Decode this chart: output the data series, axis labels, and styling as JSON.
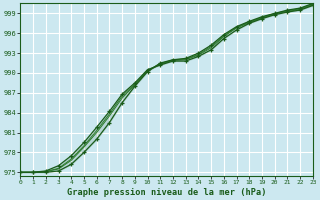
{
  "title": "Graphe pression niveau de la mer (hPa)",
  "bg_color": "#cce8f0",
  "grid_color": "#ffffff",
  "line_color_dark": "#1a5c1a",
  "line_color_mid": "#2d7a2d",
  "xlim": [
    0,
    23
  ],
  "ylim": [
    974.5,
    1000.5
  ],
  "yticks": [
    975,
    978,
    981,
    984,
    987,
    990,
    993,
    996,
    999
  ],
  "xticks": [
    0,
    1,
    2,
    3,
    4,
    5,
    6,
    7,
    8,
    9,
    10,
    11,
    12,
    13,
    14,
    15,
    16,
    17,
    18,
    19,
    20,
    21,
    22,
    23
  ],
  "series_upper": [
    975.0,
    975.0,
    975.2,
    976.0,
    977.5,
    979.5,
    981.8,
    984.2,
    986.8,
    988.5,
    990.5,
    991.2,
    991.8,
    991.8,
    992.5,
    993.5,
    995.2,
    996.5,
    997.5,
    998.2,
    998.8,
    999.2,
    999.5,
    1000.2
  ],
  "series_lower": [
    975.0,
    975.0,
    975.0,
    975.2,
    976.2,
    978.0,
    980.0,
    982.5,
    985.5,
    988.0,
    990.2,
    991.5,
    992.0,
    992.2,
    993.0,
    994.2,
    995.8,
    997.0,
    997.8,
    998.5,
    999.0,
    999.5,
    999.8,
    1000.5
  ],
  "series_mid1": [
    975.0,
    975.0,
    975.1,
    975.5,
    976.8,
    978.8,
    981.0,
    983.5,
    986.2,
    988.2,
    990.3,
    991.3,
    991.9,
    992.0,
    992.7,
    993.8,
    995.5,
    996.8,
    997.6,
    998.3,
    998.9,
    999.3,
    999.6,
    1000.3
  ],
  "series_mid2": [
    975.0,
    975.0,
    975.1,
    975.6,
    977.0,
    979.0,
    981.3,
    983.8,
    986.5,
    988.3,
    990.4,
    991.4,
    992.0,
    992.1,
    992.8,
    994.0,
    995.6,
    996.9,
    997.7,
    998.4,
    999.0,
    999.4,
    999.7,
    1000.4
  ]
}
